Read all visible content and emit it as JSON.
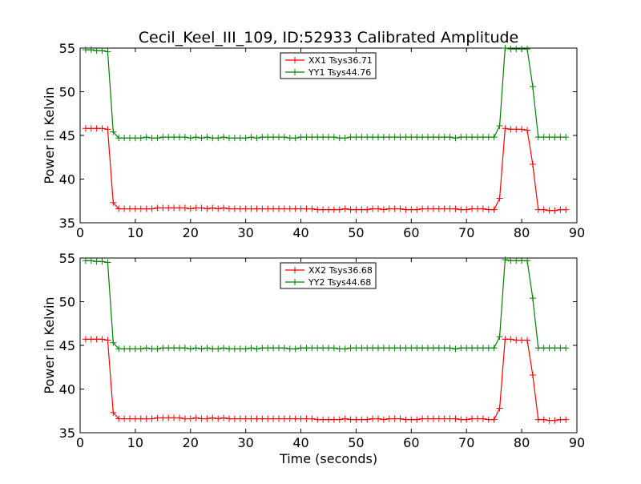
{
  "figure": {
    "title": "Cecil_Keel_III_109, ID:52933 Calibrated Amplitude",
    "xlabel": "Time (seconds)"
  },
  "colors": {
    "xx": "#ff0000",
    "yy": "#008000",
    "axes": "#000000",
    "background": "#ffffff"
  },
  "chart_data": [
    {
      "type": "line",
      "title": "Cecil_Keel_III_109, ID:52933 Calibrated Amplitude",
      "xlabel": "",
      "ylabel": "Power in Kelvin",
      "xlim": [
        0,
        90
      ],
      "ylim": [
        35,
        55
      ],
      "xticks": [
        "0",
        "10",
        "20",
        "30",
        "40",
        "50",
        "60",
        "70",
        "80",
        "90"
      ],
      "yticks": [
        "35",
        "40",
        "45",
        "50",
        "55"
      ],
      "grid": false,
      "legend_position": "top-center",
      "marker": "+",
      "series": [
        {
          "name": "XX1 Tsys36.71",
          "color": "#ff0000",
          "x": [
            1,
            2,
            3,
            4,
            5,
            6,
            7,
            8,
            9,
            10,
            11,
            12,
            13,
            14,
            15,
            16,
            17,
            18,
            19,
            20,
            21,
            22,
            23,
            24,
            25,
            26,
            27,
            28,
            29,
            30,
            31,
            32,
            33,
            34,
            35,
            36,
            37,
            38,
            39,
            40,
            41,
            42,
            43,
            44,
            45,
            46,
            47,
            48,
            49,
            50,
            51,
            52,
            53,
            54,
            55,
            56,
            57,
            58,
            59,
            60,
            61,
            62,
            63,
            64,
            65,
            66,
            67,
            68,
            69,
            70,
            71,
            72,
            73,
            74,
            75,
            76,
            77,
            78,
            79,
            80,
            81,
            82,
            83,
            84,
            85,
            86,
            87,
            88
          ],
          "y": [
            45.8,
            45.8,
            45.8,
            45.8,
            45.7,
            37.3,
            36.6,
            36.6,
            36.6,
            36.6,
            36.6,
            36.6,
            36.6,
            36.7,
            36.7,
            36.7,
            36.7,
            36.7,
            36.7,
            36.6,
            36.7,
            36.7,
            36.6,
            36.7,
            36.6,
            36.7,
            36.6,
            36.6,
            36.6,
            36.6,
            36.6,
            36.6,
            36.6,
            36.6,
            36.6,
            36.6,
            36.6,
            36.6,
            36.6,
            36.6,
            36.6,
            36.6,
            36.5,
            36.5,
            36.5,
            36.5,
            36.5,
            36.6,
            36.5,
            36.5,
            36.5,
            36.5,
            36.6,
            36.6,
            36.5,
            36.6,
            36.6,
            36.6,
            36.5,
            36.5,
            36.5,
            36.6,
            36.6,
            36.6,
            36.6,
            36.6,
            36.6,
            36.6,
            36.5,
            36.5,
            36.6,
            36.6,
            36.6,
            36.5,
            36.5,
            37.8,
            45.8,
            45.7,
            45.7,
            45.7,
            45.6,
            41.7,
            36.5,
            36.5,
            36.4,
            36.4,
            36.5,
            36.5
          ]
        },
        {
          "name": "YY1 Tsys44.76",
          "color": "#008000",
          "x": [
            1,
            2,
            3,
            4,
            5,
            6,
            7,
            8,
            9,
            10,
            11,
            12,
            13,
            14,
            15,
            16,
            17,
            18,
            19,
            20,
            21,
            22,
            23,
            24,
            25,
            26,
            27,
            28,
            29,
            30,
            31,
            32,
            33,
            34,
            35,
            36,
            37,
            38,
            39,
            40,
            41,
            42,
            43,
            44,
            45,
            46,
            47,
            48,
            49,
            50,
            51,
            52,
            53,
            54,
            55,
            56,
            57,
            58,
            59,
            60,
            61,
            62,
            63,
            64,
            65,
            66,
            67,
            68,
            69,
            70,
            71,
            72,
            73,
            74,
            75,
            76,
            77,
            78,
            79,
            80,
            81,
            82,
            83,
            84,
            85,
            86,
            87,
            88
          ],
          "y": [
            54.8,
            54.8,
            54.7,
            54.7,
            54.6,
            45.4,
            44.7,
            44.7,
            44.7,
            44.7,
            44.7,
            44.8,
            44.7,
            44.7,
            44.8,
            44.8,
            44.8,
            44.8,
            44.8,
            44.7,
            44.8,
            44.7,
            44.8,
            44.7,
            44.7,
            44.8,
            44.7,
            44.7,
            44.7,
            44.7,
            44.8,
            44.7,
            44.8,
            44.8,
            44.8,
            44.8,
            44.8,
            44.7,
            44.7,
            44.8,
            44.8,
            44.8,
            44.8,
            44.8,
            44.8,
            44.8,
            44.7,
            44.7,
            44.8,
            44.8,
            44.8,
            44.8,
            44.8,
            44.8,
            44.8,
            44.8,
            44.8,
            44.8,
            44.8,
            44.8,
            44.8,
            44.8,
            44.8,
            44.8,
            44.8,
            44.8,
            44.8,
            44.7,
            44.8,
            44.8,
            44.8,
            44.8,
            44.8,
            44.8,
            44.8,
            46.1,
            55.0,
            54.9,
            54.9,
            54.9,
            54.9,
            50.6,
            44.8,
            44.8,
            44.8,
            44.8,
            44.8,
            44.8
          ]
        }
      ]
    },
    {
      "type": "line",
      "title": "",
      "xlabel": "Time (seconds)",
      "ylabel": "Power in Kelvin",
      "xlim": [
        0,
        90
      ],
      "ylim": [
        35,
        55
      ],
      "xticks": [
        "0",
        "10",
        "20",
        "30",
        "40",
        "50",
        "60",
        "70",
        "80",
        "90"
      ],
      "yticks": [
        "35",
        "40",
        "45",
        "50",
        "55"
      ],
      "grid": false,
      "legend_position": "top-center",
      "marker": "+",
      "series": [
        {
          "name": "XX2 Tsys36.68",
          "color": "#ff0000",
          "x": [
            1,
            2,
            3,
            4,
            5,
            6,
            7,
            8,
            9,
            10,
            11,
            12,
            13,
            14,
            15,
            16,
            17,
            18,
            19,
            20,
            21,
            22,
            23,
            24,
            25,
            26,
            27,
            28,
            29,
            30,
            31,
            32,
            33,
            34,
            35,
            36,
            37,
            38,
            39,
            40,
            41,
            42,
            43,
            44,
            45,
            46,
            47,
            48,
            49,
            50,
            51,
            52,
            53,
            54,
            55,
            56,
            57,
            58,
            59,
            60,
            61,
            62,
            63,
            64,
            65,
            66,
            67,
            68,
            69,
            70,
            71,
            72,
            73,
            74,
            75,
            76,
            77,
            78,
            79,
            80,
            81,
            82,
            83,
            84,
            85,
            86,
            87,
            88
          ],
          "y": [
            45.7,
            45.7,
            45.7,
            45.7,
            45.6,
            37.3,
            36.6,
            36.6,
            36.6,
            36.6,
            36.6,
            36.6,
            36.6,
            36.7,
            36.7,
            36.7,
            36.7,
            36.7,
            36.6,
            36.6,
            36.7,
            36.6,
            36.6,
            36.7,
            36.6,
            36.7,
            36.6,
            36.6,
            36.6,
            36.6,
            36.6,
            36.6,
            36.6,
            36.6,
            36.6,
            36.6,
            36.6,
            36.6,
            36.6,
            36.6,
            36.6,
            36.6,
            36.5,
            36.5,
            36.5,
            36.5,
            36.5,
            36.6,
            36.5,
            36.5,
            36.5,
            36.5,
            36.6,
            36.6,
            36.5,
            36.6,
            36.6,
            36.6,
            36.5,
            36.5,
            36.5,
            36.6,
            36.6,
            36.6,
            36.6,
            36.6,
            36.6,
            36.6,
            36.5,
            36.5,
            36.6,
            36.6,
            36.6,
            36.5,
            36.5,
            37.8,
            45.7,
            45.7,
            45.6,
            45.6,
            45.6,
            41.6,
            36.5,
            36.5,
            36.4,
            36.4,
            36.5,
            36.5
          ]
        },
        {
          "name": "YY2 Tsys44.68",
          "color": "#008000",
          "x": [
            1,
            2,
            3,
            4,
            5,
            6,
            7,
            8,
            9,
            10,
            11,
            12,
            13,
            14,
            15,
            16,
            17,
            18,
            19,
            20,
            21,
            22,
            23,
            24,
            25,
            26,
            27,
            28,
            29,
            30,
            31,
            32,
            33,
            34,
            35,
            36,
            37,
            38,
            39,
            40,
            41,
            42,
            43,
            44,
            45,
            46,
            47,
            48,
            49,
            50,
            51,
            52,
            53,
            54,
            55,
            56,
            57,
            58,
            59,
            60,
            61,
            62,
            63,
            64,
            65,
            66,
            67,
            68,
            69,
            70,
            71,
            72,
            73,
            74,
            75,
            76,
            77,
            78,
            79,
            80,
            81,
            82,
            83,
            84,
            85,
            86,
            87,
            88
          ],
          "y": [
            54.7,
            54.7,
            54.6,
            54.6,
            54.5,
            45.3,
            44.6,
            44.6,
            44.6,
            44.6,
            44.6,
            44.7,
            44.6,
            44.6,
            44.7,
            44.7,
            44.7,
            44.7,
            44.7,
            44.6,
            44.7,
            44.6,
            44.7,
            44.6,
            44.6,
            44.7,
            44.6,
            44.6,
            44.6,
            44.6,
            44.7,
            44.6,
            44.7,
            44.7,
            44.7,
            44.7,
            44.7,
            44.6,
            44.6,
            44.7,
            44.7,
            44.7,
            44.7,
            44.7,
            44.7,
            44.7,
            44.6,
            44.6,
            44.7,
            44.7,
            44.7,
            44.7,
            44.7,
            44.7,
            44.7,
            44.7,
            44.7,
            44.7,
            44.7,
            44.7,
            44.7,
            44.7,
            44.7,
            44.7,
            44.7,
            44.7,
            44.7,
            44.6,
            44.7,
            44.7,
            44.7,
            44.7,
            44.7,
            44.7,
            44.7,
            46.0,
            54.8,
            54.7,
            54.7,
            54.7,
            54.7,
            50.4,
            44.7,
            44.7,
            44.7,
            44.7,
            44.7,
            44.7
          ]
        }
      ]
    }
  ]
}
